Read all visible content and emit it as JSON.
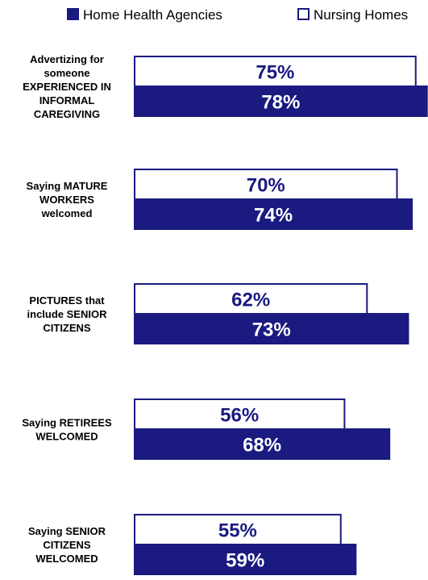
{
  "chart_data": {
    "type": "bar",
    "orientation": "horizontal",
    "legend_position": "top",
    "series": [
      {
        "name": "Nursing Homes",
        "values": [
          75,
          70,
          62,
          56,
          55
        ],
        "color": "#ffffff",
        "border": "#1a1a80",
        "label_color": "#1a1a80"
      },
      {
        "name": "Home Health Agencies",
        "values": [
          78,
          74,
          73,
          68,
          59
        ],
        "color": "#1a1a80",
        "border": "#1a1a80",
        "label_color": "#ffffff"
      }
    ],
    "categories": [
      [
        "Advertizing for",
        "someone",
        "EXPERIENCED IN",
        "INFORMAL",
        "CAREGIVING"
      ],
      [
        "Saying MATURE",
        "WORKERS",
        "welcomed"
      ],
      [
        "PICTURES that",
        "include SENIOR",
        "CITIZENS"
      ],
      [
        "Saying RETIREES",
        "WELCOMED"
      ],
      [
        "Saying SENIOR",
        "CITIZENS",
        "WELCOMED"
      ]
    ],
    "value_suffix": "%",
    "xlim": [
      0,
      80
    ]
  }
}
